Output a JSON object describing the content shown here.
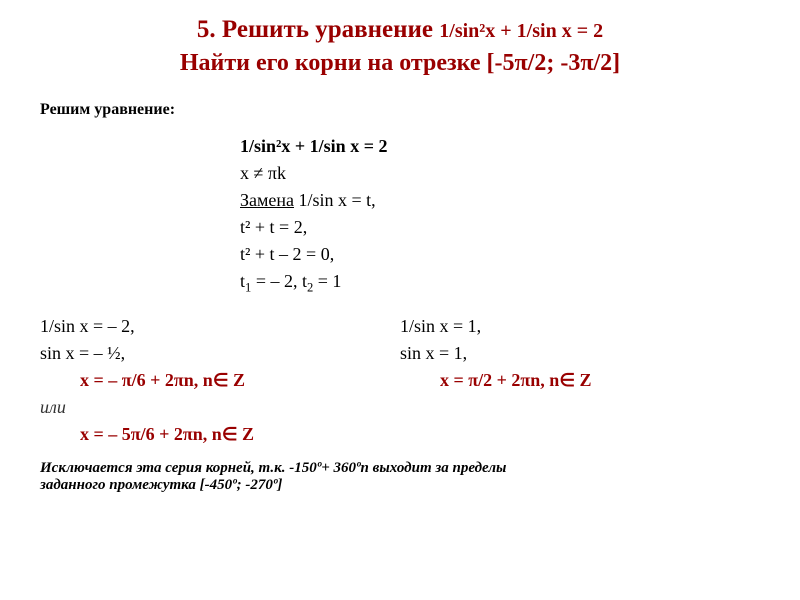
{
  "colors": {
    "heading": "#990000",
    "text": "#000000",
    "result": "#990000",
    "background": "#ffffff"
  },
  "typography": {
    "family": "Times New Roman",
    "title_size_pt": 25,
    "body_size_pt": 18,
    "note_size_pt": 15
  },
  "title": {
    "line1_a": "5. Решить уравнение ",
    "line1_b": "1/sin²x + 1/sin x = 2",
    "line2_a": "Найти его корни на отрезке [-5",
    "line2_b": "π",
    "line2_c": "/2; -3",
    "line2_d": "π",
    "line2_e": "/2]"
  },
  "solve_label": "Решим уравнение:",
  "steps": {
    "s1": "1/sin²x + 1/sin x = 2",
    "s2a": "x ≠ ",
    "s2b": "π",
    "s2c": "k",
    "s3": "Замена",
    "s3b": " 1/sin x = t,",
    "s4": "t² + t = 2,",
    "s5": "t² + t – 2 = 0,",
    "s6a": "t",
    "s6b": "1",
    "s6c": " = – 2, t",
    "s6d": "2",
    "s6e": " = 1"
  },
  "left": {
    "l1": "1/sin x = – 2,",
    "l2": "sin x = – ½,",
    "r1a": "x = – ",
    "r1b": "π",
    "r1c": "/6 + 2",
    "r1d": "π",
    "r1e": "n, n",
    "r1f": "∈",
    "r1g": " Z",
    "or": "или",
    "r2a": "x = – 5",
    "r2b": "π",
    "r2c": "/6 + 2",
    "r2d": "π",
    "r2e": "n, n",
    "r2f": "∈",
    "r2g": " Z"
  },
  "right": {
    "l1": "1/sin x = 1,",
    "l2": "sin x = 1,",
    "r1a": "x = ",
    "r1b": "π",
    "r1c": "/2 + 2",
    "r1d": "π",
    "r1e": "n, n",
    "r1f": "∈",
    "r1g": " Z"
  },
  "note": {
    "a": "Исключается эта серия корней, т.к. -150º+ 360ºn выходит за пределы",
    "b": "заданного промежутка [-450º; -270º]"
  }
}
